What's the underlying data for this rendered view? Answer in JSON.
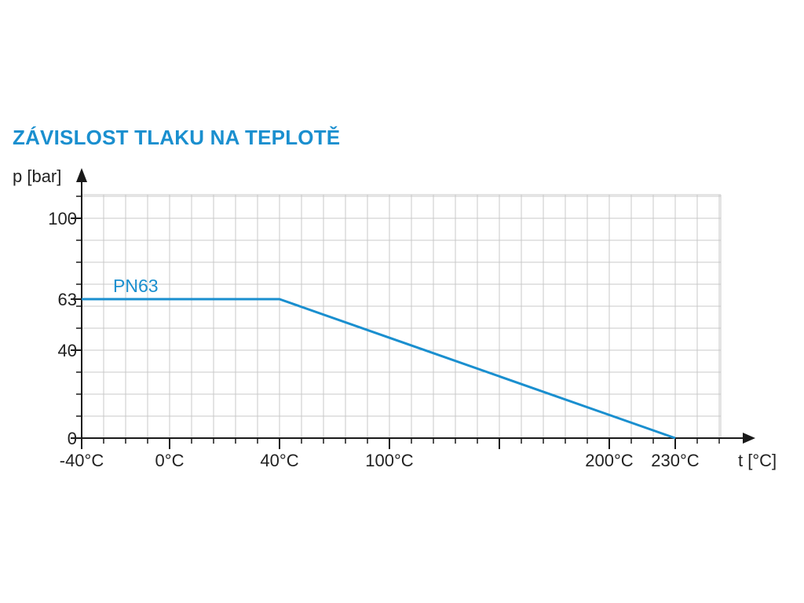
{
  "chart_data": {
    "type": "line",
    "title": "ZÁVISLOST TLAKU NA TEPLOTĚ",
    "xlabel": "t [°C]",
    "ylabel": "p [bar]",
    "x_ticks": [
      {
        "value": -40,
        "label": "-40°C"
      },
      {
        "value": 0,
        "label": "0°C"
      },
      {
        "value": 40,
        "label": "40°C"
      },
      {
        "value": 100,
        "label": "100°C"
      },
      {
        "value": 200,
        "label": "200°C"
      },
      {
        "value": 230,
        "label": "230°C"
      }
    ],
    "y_ticks": [
      {
        "value": 0,
        "label": "0"
      },
      {
        "value": 40,
        "label": "40"
      },
      {
        "value": 63,
        "label": "63"
      },
      {
        "value": 100,
        "label": "100"
      }
    ],
    "xlim": [
      -40,
      250
    ],
    "ylim": [
      0,
      110
    ],
    "grid": true,
    "series": [
      {
        "name": "PN63",
        "color": "#1a8fcf",
        "points": [
          [
            -40,
            63
          ],
          [
            40,
            63
          ],
          [
            230,
            0
          ]
        ]
      }
    ]
  }
}
